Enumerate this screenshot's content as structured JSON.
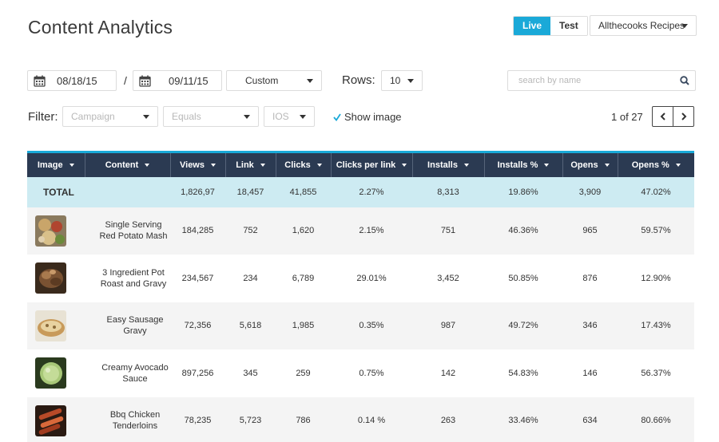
{
  "header": {
    "title": "Content Analytics",
    "env_live": "Live",
    "env_test": "Test",
    "account": "Allthecooks Recipes"
  },
  "toolbar": {
    "date_from": "08/18/15",
    "date_separator": "/",
    "date_to": "09/11/15",
    "range": "Custom",
    "rows_label": "Rows:",
    "rows_value": "10",
    "search_placeholder": "search by name"
  },
  "filter": {
    "label": "Filter:",
    "campaign": "Campaign",
    "operator": "Equals",
    "platform": "IOS",
    "show_image_label": "Show image",
    "show_image_checked": true
  },
  "pager": {
    "text": "1 of 27"
  },
  "table": {
    "columns": [
      "Image",
      "Content",
      "Views",
      "Link",
      "Clicks",
      "Clicks per link",
      "Installs",
      "Installs %",
      "Opens",
      "Opens  %"
    ],
    "total": {
      "label": "TOTAL",
      "views": "1,826,97",
      "link": "18,457",
      "clicks": "41,855",
      "cpl": "2.27%",
      "installs": "8,313",
      "installs_pct": "19.86%",
      "opens": "3,909",
      "opens_pct": "47.02%"
    },
    "rows": [
      {
        "content": "Single Serving Red Potato Mash",
        "views": "184,285",
        "link": "752",
        "clicks": "1,620",
        "cpl": "2.15%",
        "installs": "751",
        "installs_pct": "46.36%",
        "opens": "965",
        "opens_pct": "59.57%"
      },
      {
        "content": "3 Ingredient Pot Roast and Gravy",
        "views": "234,567",
        "link": "234",
        "clicks": "6,789",
        "cpl": "29.01%",
        "installs": "3,452",
        "installs_pct": "50.85%",
        "opens": "876",
        "opens_pct": "12.90%"
      },
      {
        "content": "Easy Sausage Gravy",
        "views": "72,356",
        "link": "5,618",
        "clicks": "1,985",
        "cpl": "0.35%",
        "installs": "987",
        "installs_pct": "49.72%",
        "opens": "346",
        "opens_pct": "17.43%"
      },
      {
        "content": "Creamy Avocado Sauce",
        "views": "897,256",
        "link": "345",
        "clicks": "259",
        "cpl": "0.75%",
        "installs": "142",
        "installs_pct": "54.83%",
        "opens": "146",
        "opens_pct": "56.37%"
      },
      {
        "content": "Bbq Chicken Tenderloins",
        "views": "78,235",
        "link": "5,723",
        "clicks": "786",
        "cpl": "0.14 %",
        "installs": "263",
        "installs_pct": "33.46%",
        "opens": "634",
        "opens_pct": "80.66%"
      }
    ]
  },
  "colors": {
    "accent": "#1aa9d8",
    "header_bg": "#2b3a52",
    "total_bg": "#cdebf2"
  }
}
